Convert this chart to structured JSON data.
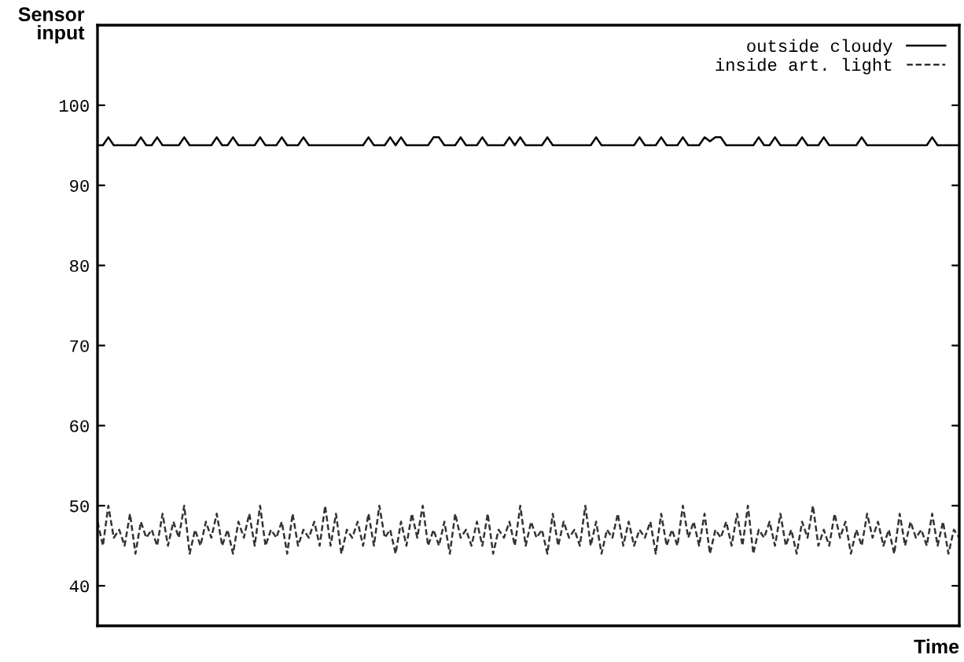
{
  "chart_data": {
    "type": "line",
    "xlabel": "Time",
    "ylabel": "Sensor\ninput",
    "categories": [
      null,
      null,
      null,
      null,
      null,
      null,
      null,
      null,
      null,
      null,
      null,
      null,
      null,
      null,
      null,
      null,
      null,
      null,
      null,
      null,
      null,
      null,
      null,
      null,
      null,
      null,
      null,
      null,
      null,
      null,
      null,
      null,
      null,
      null,
      null,
      null,
      null,
      null,
      null,
      null,
      null,
      null,
      null,
      null,
      null,
      null,
      null,
      null,
      null,
      null,
      null,
      null,
      null,
      null,
      null,
      null,
      null,
      null,
      null,
      null,
      null,
      null,
      null,
      null,
      null,
      null,
      null,
      null,
      null,
      null,
      null,
      null,
      null,
      null,
      null,
      null,
      null,
      null,
      null,
      null,
      null,
      null,
      null,
      null,
      null,
      null,
      null,
      null,
      null,
      null,
      null,
      null,
      null,
      null,
      null,
      null,
      null,
      null,
      null,
      null,
      null,
      null,
      null,
      null,
      null,
      null,
      null,
      null,
      null,
      null,
      null,
      null,
      null,
      null,
      null,
      null,
      null,
      null,
      null,
      null,
      null,
      null,
      null,
      null,
      null,
      null,
      null,
      null,
      null,
      null,
      null,
      null,
      null,
      null,
      null,
      null,
      null,
      null,
      null,
      null,
      null,
      null,
      null,
      null,
      null,
      null,
      null,
      null,
      null,
      null,
      null,
      null,
      null,
      null,
      null,
      null,
      null,
      null,
      null,
      null
    ],
    "series": [
      {
        "name": "outside cloudy",
        "color": "#000000",
        "line_style": "solid",
        "values": [
          95,
          95,
          96,
          95,
          95,
          95,
          95,
          95,
          96,
          95,
          95,
          96,
          95,
          95,
          95,
          95,
          96,
          95,
          95,
          95,
          95,
          95,
          96,
          95,
          95,
          96,
          95,
          95,
          95,
          95,
          96,
          95,
          95,
          95,
          96,
          95,
          95,
          95,
          96,
          95,
          95,
          95,
          95,
          95,
          95,
          95,
          95,
          95,
          95,
          95,
          96,
          95,
          95,
          95,
          96,
          95,
          96,
          95,
          95,
          95,
          95,
          95,
          96,
          96,
          95,
          95,
          95,
          96,
          95,
          95,
          95,
          96,
          95,
          95,
          95,
          95,
          96,
          95,
          96,
          95,
          95,
          95,
          95,
          96,
          95,
          95,
          95,
          95,
          95,
          95,
          95,
          95,
          96,
          95,
          95,
          95,
          95,
          95,
          95,
          95,
          96,
          95,
          95,
          95,
          96,
          95,
          95,
          95,
          96,
          95,
          95,
          95,
          96,
          95.5,
          96,
          96,
          95,
          95,
          95,
          95,
          95,
          95,
          96,
          95,
          95,
          96,
          95,
          95,
          95,
          95,
          96,
          95,
          95,
          95,
          96,
          95,
          95,
          95,
          95,
          95,
          95,
          96,
          95,
          95,
          95,
          95,
          95,
          95,
          95,
          95,
          95,
          95,
          95,
          95,
          96,
          95,
          95,
          95,
          95,
          95
        ]
      },
      {
        "name": "inside art. light",
        "color": "#333333",
        "line_style": "dashed",
        "values": [
          48,
          45,
          50,
          46,
          47,
          45,
          49,
          44,
          48,
          46,
          47,
          45,
          49,
          45,
          48,
          46,
          50,
          44,
          47,
          45,
          48,
          46,
          49,
          45,
          47,
          44,
          48,
          46,
          49,
          45,
          50,
          45,
          47,
          46,
          48,
          44,
          49,
          45,
          47,
          46,
          48,
          45,
          50,
          45,
          49,
          44,
          47,
          46,
          48,
          45,
          49,
          45,
          50,
          46,
          47,
          44,
          48,
          45,
          49,
          46,
          50,
          45,
          47,
          45,
          48,
          44,
          49,
          46,
          47,
          45,
          48,
          45,
          49,
          44,
          47,
          46,
          48,
          45,
          50,
          45,
          48,
          46,
          47,
          44,
          49,
          45,
          48,
          46,
          47,
          45,
          50,
          45,
          48,
          44,
          47,
          46,
          49,
          45,
          48,
          45,
          47,
          46,
          48,
          44,
          49,
          45,
          47,
          45,
          50,
          46,
          48,
          45,
          49,
          44,
          47,
          46,
          48,
          45,
          49,
          45,
          50,
          44,
          47,
          46,
          48,
          45,
          49,
          45,
          47,
          44,
          48,
          46,
          50,
          45,
          47,
          45,
          49,
          46,
          48,
          44,
          47,
          45,
          49,
          46,
          48,
          45,
          47,
          44,
          49,
          45,
          48,
          46,
          47,
          45,
          49,
          45,
          48,
          44,
          47,
          46
        ]
      }
    ],
    "ylim": [
      35,
      110
    ],
    "yticks": [
      40,
      50,
      60,
      70,
      80,
      90,
      100
    ],
    "grid": false,
    "legend": "top right",
    "marker": "none",
    "tick_labels": "y"
  }
}
